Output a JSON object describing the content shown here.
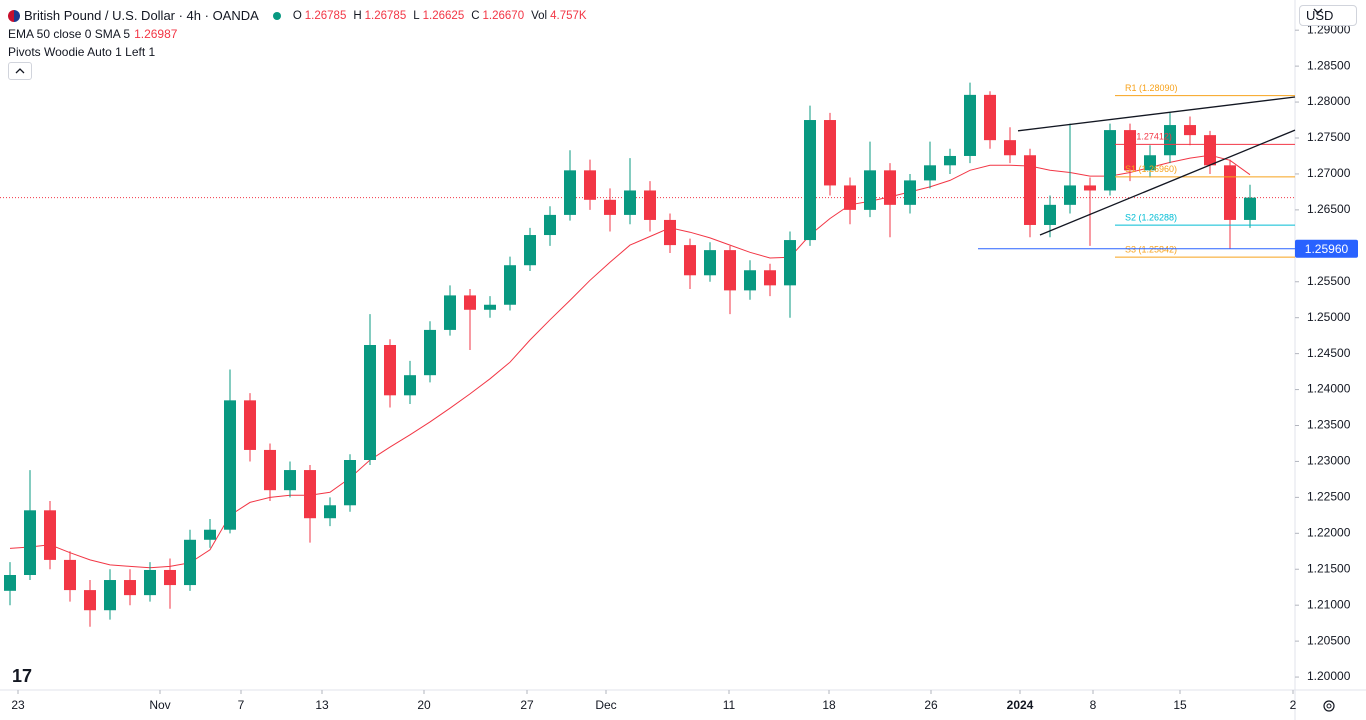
{
  "chart_data": {
    "type": "candlestick",
    "header": {
      "symbol": "British Pound / U.S. Dollar · 4h · OANDA",
      "fields": [
        {
          "label": "O",
          "value": 1.26785
        },
        {
          "label": "H",
          "value": 1.26785
        },
        {
          "label": "L",
          "value": 1.26625
        },
        {
          "label": "C",
          "value": 1.2667,
          "text": "1.26670"
        },
        {
          "label": "Vol",
          "value": "4.757K"
        }
      ],
      "indicators": [
        {
          "name": "EMA 50 close 0 SMA 5",
          "value": 1.26987
        },
        {
          "name": "Pivots Woodie Auto 1 Left 1"
        }
      ]
    },
    "currency": "USD",
    "up_color": "#089981",
    "down_color": "#f23645",
    "open": [
      1.212,
      1.2142,
      1.2232,
      1.2163,
      1.2121,
      1.2093,
      1.2135,
      1.2114,
      1.2149,
      1.2128,
      1.2191,
      1.2205,
      1.2385,
      1.2316,
      1.226,
      1.2288,
      1.2221,
      1.2239,
      1.2302,
      1.2462,
      1.2392,
      1.242,
      1.2483,
      1.2531,
      1.2511,
      1.2518,
      1.2573,
      1.2615,
      1.2643,
      1.2705,
      1.2664,
      1.2643,
      1.2677,
      1.2636,
      1.2601,
      1.2559,
      1.2594,
      1.2538,
      1.2566,
      1.2545,
      1.2608,
      1.2775,
      1.2684,
      1.265,
      1.2705,
      1.2657,
      1.2691,
      1.2712,
      1.2725,
      1.281,
      1.2747,
      1.2726,
      1.2629,
      1.2657,
      1.2684,
      1.2677,
      1.2761,
      1.2705,
      1.2726,
      1.2768,
      1.2754,
      1.2712,
      1.2636
    ],
    "high": [
      1.216,
      1.2288,
      1.2245,
      1.2175,
      1.2135,
      1.215,
      1.215,
      1.216,
      1.2165,
      1.2205,
      1.222,
      1.2428,
      1.2395,
      1.2325,
      1.23,
      1.2295,
      1.225,
      1.231,
      1.2505,
      1.247,
      1.244,
      1.2495,
      1.2545,
      1.254,
      1.253,
      1.2585,
      1.2625,
      1.2655,
      1.2733,
      1.272,
      1.268,
      1.2722,
      1.269,
      1.2645,
      1.261,
      1.2605,
      1.26,
      1.258,
      1.2575,
      1.262,
      1.2795,
      1.2785,
      1.2695,
      1.2745,
      1.2715,
      1.27,
      1.2745,
      1.2735,
      1.2827,
      1.2815,
      1.2765,
      1.2735,
      1.267,
      1.277,
      1.2695,
      1.277,
      1.277,
      1.274,
      1.2786,
      1.278,
      1.276,
      1.272,
      1.2685
    ],
    "low": [
      1.21,
      1.2135,
      1.215,
      1.2105,
      1.207,
      1.208,
      1.21,
      1.2105,
      1.2095,
      1.212,
      1.218,
      1.22,
      1.23,
      1.2245,
      1.225,
      1.2187,
      1.221,
      1.223,
      1.2295,
      1.2375,
      1.238,
      1.241,
      1.2475,
      1.2455,
      1.25,
      1.251,
      1.2565,
      1.26,
      1.2635,
      1.265,
      1.262,
      1.263,
      1.262,
      1.259,
      1.254,
      1.255,
      1.2505,
      1.2525,
      1.253,
      1.25,
      1.26,
      1.267,
      1.263,
      1.264,
      1.2612,
      1.2645,
      1.268,
      1.27,
      1.2715,
      1.2735,
      1.2715,
      1.2612,
      1.2612,
      1.2645,
      1.26,
      1.267,
      1.269,
      1.2695,
      1.2715,
      1.274,
      1.27,
      1.2596,
      1.2625
    ],
    "close": [
      1.2142,
      1.2232,
      1.2163,
      1.2121,
      1.2093,
      1.2135,
      1.2114,
      1.2149,
      1.2128,
      1.2191,
      1.2205,
      1.2385,
      1.2316,
      1.226,
      1.2288,
      1.2221,
      1.2239,
      1.2302,
      1.2462,
      1.2392,
      1.242,
      1.2483,
      1.2531,
      1.2511,
      1.2518,
      1.2573,
      1.2615,
      1.2643,
      1.2705,
      1.2664,
      1.2643,
      1.2677,
      1.2636,
      1.2601,
      1.2559,
      1.2594,
      1.2538,
      1.2566,
      1.2545,
      1.2608,
      1.2775,
      1.2684,
      1.265,
      1.2705,
      1.2657,
      1.2691,
      1.2712,
      1.2725,
      1.281,
      1.2747,
      1.2726,
      1.2629,
      1.2657,
      1.2684,
      1.2677,
      1.2761,
      1.2705,
      1.2726,
      1.2768,
      1.2754,
      1.2712,
      1.2636,
      1.2667
    ],
    "ema": {
      "color": "#f23645",
      "values": [
        1.2179,
        1.2181,
        1.2184,
        1.2173,
        1.2163,
        1.2156,
        1.2154,
        1.2152,
        1.2154,
        1.2159,
        1.2177,
        1.2225,
        1.2243,
        1.225,
        1.2253,
        1.2253,
        1.2257,
        1.2277,
        1.2302,
        1.232,
        1.2337,
        1.2355,
        1.2374,
        1.2394,
        1.2415,
        1.2438,
        1.2469,
        1.2497,
        1.2524,
        1.2552,
        1.2577,
        1.2601,
        1.2613,
        1.2625,
        1.2619,
        1.2611,
        1.2601,
        1.2591,
        1.2583,
        1.2584,
        1.2615,
        1.2638,
        1.2657,
        1.2662,
        1.2668,
        1.2675,
        1.2682,
        1.2691,
        1.2705,
        1.2712,
        1.2712,
        1.2711,
        1.2705,
        1.2702,
        1.2697,
        1.2697,
        1.2702,
        1.2709,
        1.2716,
        1.2722,
        1.2726,
        1.2719,
        1.2699
      ]
    },
    "pivot_start": 55.25,
    "pivots": [
      {
        "label": "R1 (1.28090)",
        "value": 1.2809,
        "color": "#f7a21b"
      },
      {
        "label": "P (1.27412)",
        "value": 1.27412,
        "color": "#f23645"
      },
      {
        "label": "S1 (1.26960)",
        "value": 1.2696,
        "color": "#f7a21b"
      },
      {
        "label": "S2 (1.26288)",
        "value": 1.26288,
        "color": "#00bcd4"
      },
      {
        "label": "S3 (1.25842)",
        "value": 1.25842,
        "color": "#f7a21b"
      }
    ],
    "hline": {
      "value": 1.2596,
      "label": "1.25960",
      "x_start": 48.4,
      "color": "#2962ff"
    },
    "trendlines": [
      {
        "x": [
          50.4,
          64.25
        ],
        "y": [
          1.276,
          1.2807
        ]
      },
      {
        "x": [
          51.5,
          64.25
        ],
        "y": [
          1.2615,
          1.2761
        ]
      }
    ],
    "xlim": [
      -0.5,
      64.25
    ],
    "ylim": [
      1.1982,
      1.2942
    ],
    "xticks": [
      {
        "value": 0.4,
        "label": "23"
      },
      {
        "value": 7.5,
        "label": "Nov"
      },
      {
        "value": 11.55,
        "label": "7"
      },
      {
        "value": 15.6,
        "label": "13"
      },
      {
        "value": 20.7,
        "label": "20"
      },
      {
        "value": 25.85,
        "label": "27"
      },
      {
        "value": 29.8,
        "label": "Dec"
      },
      {
        "value": 35.95,
        "label": "11"
      },
      {
        "value": 40.95,
        "label": "18"
      },
      {
        "value": 46.05,
        "label": "26"
      },
      {
        "value": 50.5,
        "label": "2024"
      },
      {
        "value": 54.15,
        "label": "8"
      },
      {
        "value": 58.5,
        "label": "15"
      },
      {
        "value": 64.15,
        "label": "2"
      }
    ],
    "yticks": [
      {
        "value": 1.2,
        "label": "1.20000"
      },
      {
        "value": 1.205,
        "label": "1.20500"
      },
      {
        "value": 1.21,
        "label": "1.21000"
      },
      {
        "value": 1.215,
        "label": "1.21500"
      },
      {
        "value": 1.22,
        "label": "1.22000"
      },
      {
        "value": 1.225,
        "label": "1.22500"
      },
      {
        "value": 1.23,
        "label": "1.23000"
      },
      {
        "value": 1.235,
        "label": "1.23500"
      },
      {
        "value": 1.24,
        "label": "1.24000"
      },
      {
        "value": 1.245,
        "label": "1.24500"
      },
      {
        "value": 1.25,
        "label": "1.25000"
      },
      {
        "value": 1.255,
        "label": "1.25500"
      },
      {
        "value": 1.26,
        "label": "1.26000"
      },
      {
        "value": 1.265,
        "label": "1.26500"
      },
      {
        "value": 1.27,
        "label": "1.27000"
      },
      {
        "value": 1.275,
        "label": "1.27500"
      },
      {
        "value": 1.28,
        "label": "1.28000"
      },
      {
        "value": 1.285,
        "label": "1.28500"
      },
      {
        "value": 1.29,
        "label": "1.29000"
      }
    ],
    "grid": false
  }
}
